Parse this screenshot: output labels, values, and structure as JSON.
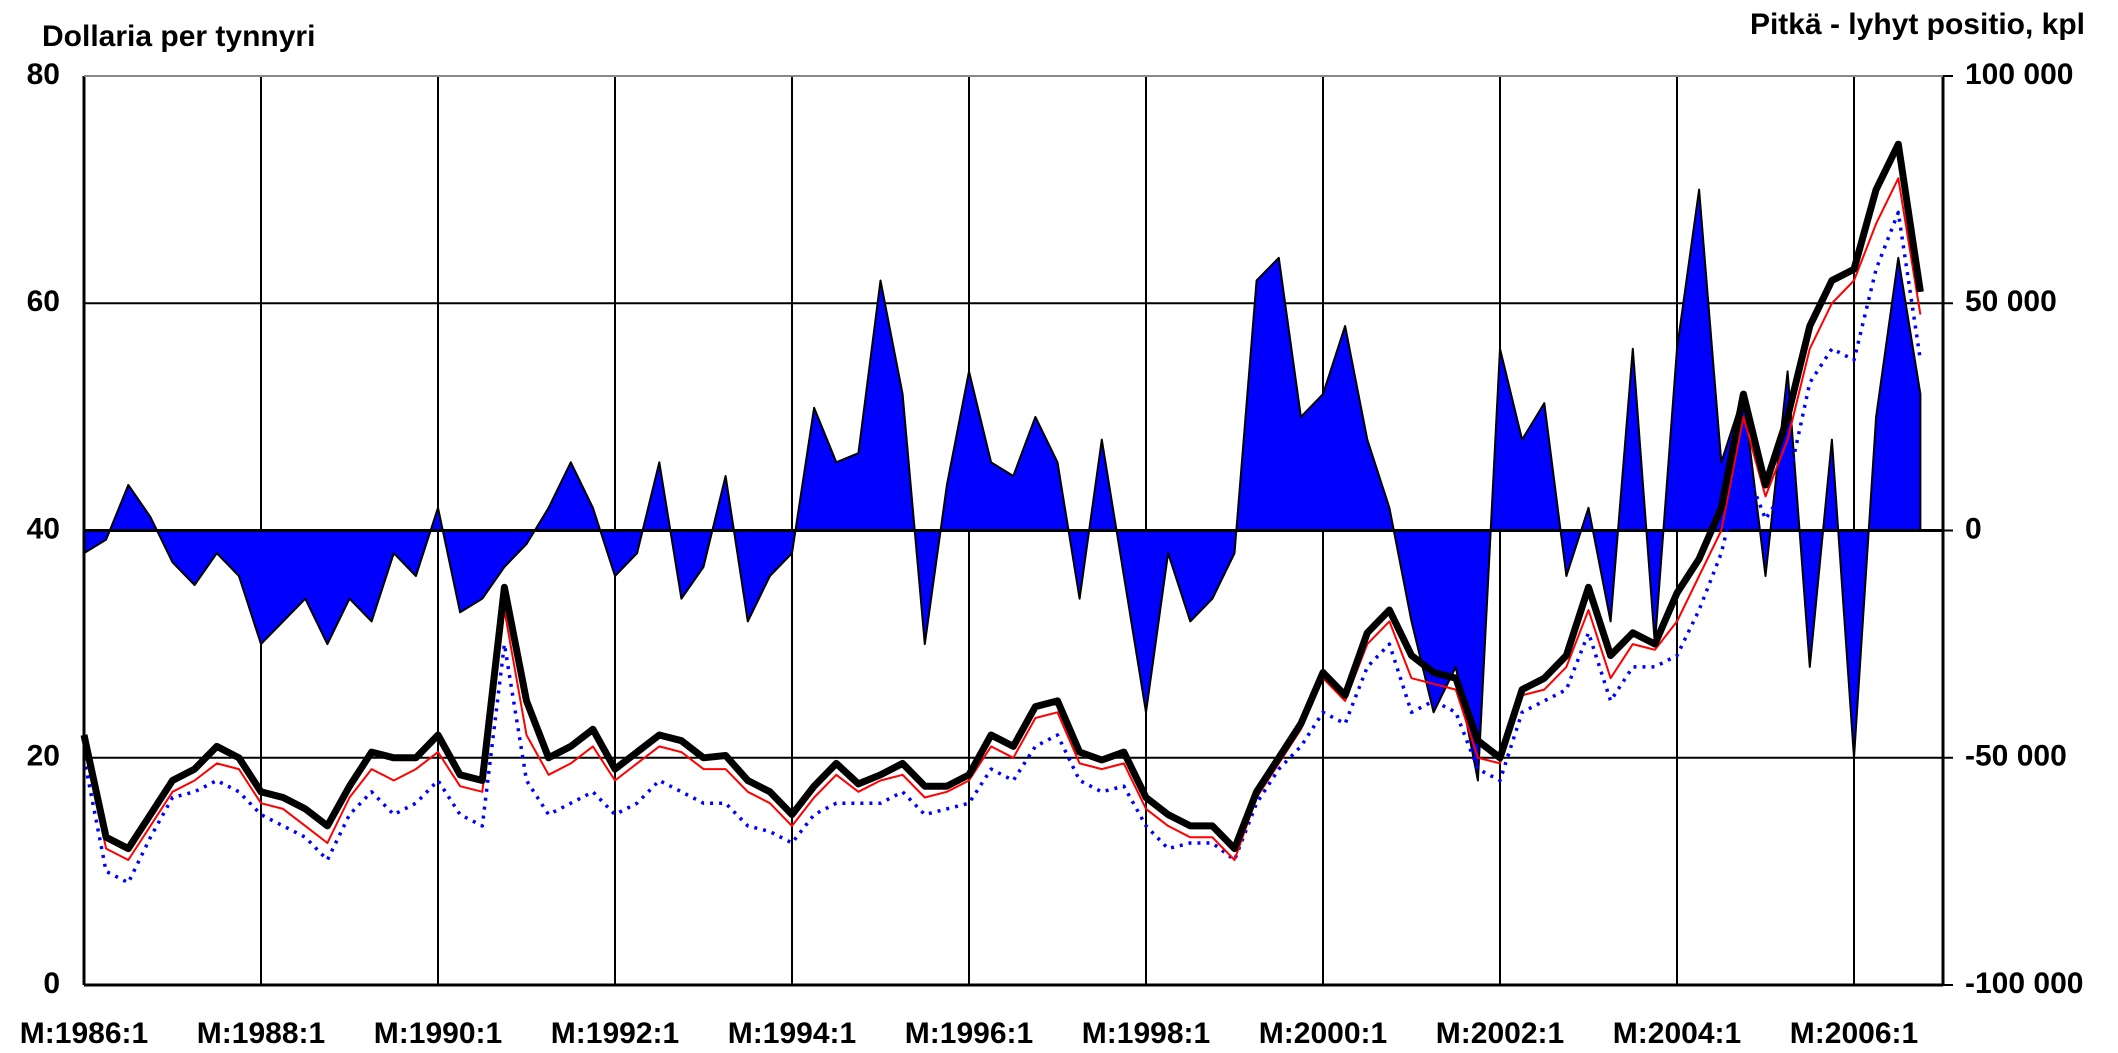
{
  "chart_data": {
    "type": "line",
    "ylabel": "Dollaria per tynnyri",
    "y2label": "Pitkä - lyhyt positio, kpl",
    "categories": [
      "M:1986:1",
      null,
      null,
      null,
      null,
      null,
      null,
      null,
      "M:1988:1",
      null,
      null,
      null,
      null,
      null,
      null,
      null,
      "M:1990:1",
      null,
      null,
      null,
      null,
      null,
      null,
      null,
      "M:1992:1",
      null,
      null,
      null,
      null,
      null,
      null,
      null,
      "M:1994:1",
      null,
      null,
      null,
      null,
      null,
      null,
      null,
      "M:1996:1",
      null,
      null,
      null,
      null,
      null,
      null,
      null,
      "M:1998:1",
      null,
      null,
      null,
      null,
      null,
      null,
      null,
      "M:2000:1",
      null,
      null,
      null,
      null,
      null,
      null,
      null,
      "M:2002:1",
      null,
      null,
      null,
      null,
      null,
      null,
      null,
      "M:2004:1",
      null,
      null,
      null,
      null,
      null,
      null,
      null,
      "M:2006:1",
      null,
      null,
      null
    ],
    "series": [
      {
        "color": "#0000ff",
        "style": "area",
        "axis": "y2",
        "values": [
          -5000,
          -2000,
          10000,
          3000,
          -7000,
          -12000,
          -5000,
          -10000,
          -25000,
          -20000,
          -15000,
          -25000,
          -15000,
          -20000,
          -5000,
          -10000,
          5000,
          -18000,
          -15000,
          -8000,
          -3000,
          5000,
          15000,
          5000,
          -10000,
          -5000,
          15000,
          -15000,
          -8000,
          12000,
          -20000,
          -10000,
          -5000,
          27000,
          15000,
          17000,
          55000,
          30000,
          -25000,
          10000,
          35000,
          15000,
          12000,
          25000,
          15000,
          -15000,
          20000,
          -10000,
          -40000,
          -5000,
          -20000,
          -15000,
          -5000,
          55000,
          60000,
          25000,
          30000,
          45000,
          20000,
          5000,
          -20000,
          -40000,
          -30000,
          -55000,
          40000,
          20000,
          28000,
          -10000,
          5000,
          -20000,
          40000,
          -25000,
          40000,
          75000,
          15000,
          30000,
          -10000,
          35000,
          -30000,
          20000,
          -50000,
          25000,
          60000,
          30000
        ]
      },
      {
        "color": "#0000ff",
        "style": "dotted",
        "values": [
          20,
          10,
          9,
          13,
          16.5,
          17,
          18,
          17,
          15,
          14,
          13,
          11,
          15,
          17,
          15,
          16,
          18,
          15,
          14,
          30,
          18,
          15,
          16,
          17,
          15,
          16,
          18,
          17,
          16,
          16,
          14,
          13.5,
          12.5,
          15,
          16,
          16,
          16,
          17,
          15,
          15.5,
          16,
          19,
          18,
          21,
          22,
          18,
          17,
          17.5,
          14,
          12,
          12.5,
          12.5,
          11,
          16,
          19,
          21,
          24,
          23,
          28,
          30,
          24,
          25,
          24,
          19,
          18,
          24,
          25,
          26,
          31,
          25,
          28,
          28,
          29,
          33,
          38,
          46,
          41,
          44,
          53,
          56,
          55,
          63,
          68,
          55
        ]
      },
      {
        "color": "#ff0000",
        "style": "thin",
        "values": [
          21,
          12,
          11,
          14,
          17,
          18,
          19.5,
          19,
          16,
          15.5,
          14,
          12.5,
          16.5,
          19,
          18,
          19,
          20.5,
          17.5,
          17,
          33,
          22,
          18.5,
          19.5,
          21,
          18,
          19.5,
          21,
          20.5,
          19,
          19,
          17,
          16,
          14,
          16.5,
          18.5,
          17,
          18,
          18.5,
          16.5,
          17,
          18,
          21,
          20,
          23.5,
          24,
          19.5,
          19,
          19.5,
          15.5,
          14,
          13,
          13,
          11,
          16.5,
          19.5,
          22.5,
          27,
          25,
          30,
          32,
          27,
          26.5,
          26,
          20,
          19.5,
          25.5,
          26,
          28,
          33,
          27,
          30,
          29.5,
          32,
          36,
          40,
          50,
          43,
          48,
          56,
          60,
          62,
          67,
          71,
          59
        ]
      },
      {
        "color": "#000000",
        "style": "thick",
        "values": [
          22,
          13,
          12,
          15,
          18,
          19,
          21,
          20,
          17,
          16.5,
          15.5,
          14,
          17.5,
          20.5,
          20,
          20,
          22,
          18.5,
          18,
          35,
          25,
          20,
          21,
          22.5,
          19,
          20.5,
          22,
          21.5,
          20,
          20.2,
          18,
          17,
          15,
          17.5,
          19.5,
          17.7,
          18.5,
          19.5,
          17.5,
          17.5,
          18.5,
          22,
          21,
          24.5,
          25,
          20.5,
          19.8,
          20.5,
          16.5,
          15,
          14,
          14,
          12,
          17,
          20,
          23,
          27.5,
          25.5,
          31,
          33,
          29,
          27.5,
          27,
          21.5,
          20,
          26,
          27,
          29,
          35,
          29,
          31,
          30,
          34.5,
          37.5,
          42,
          52,
          44,
          50,
          58,
          62,
          63,
          70,
          74,
          61
        ]
      }
    ],
    "ylim": [
      0,
      80
    ],
    "yticks": [
      0,
      20,
      40,
      60,
      80
    ],
    "y2lim": [
      -100000,
      100000
    ],
    "y2ticks": [
      {
        "value": -100000,
        "label": "-100 000"
      },
      {
        "value": -50000,
        "label": "-50 000"
      },
      {
        "value": 0,
        "label": "0"
      },
      {
        "value": 50000,
        "label": "50 000"
      },
      {
        "value": 100000,
        "label": "100 000"
      }
    ],
    "grid": true
  }
}
